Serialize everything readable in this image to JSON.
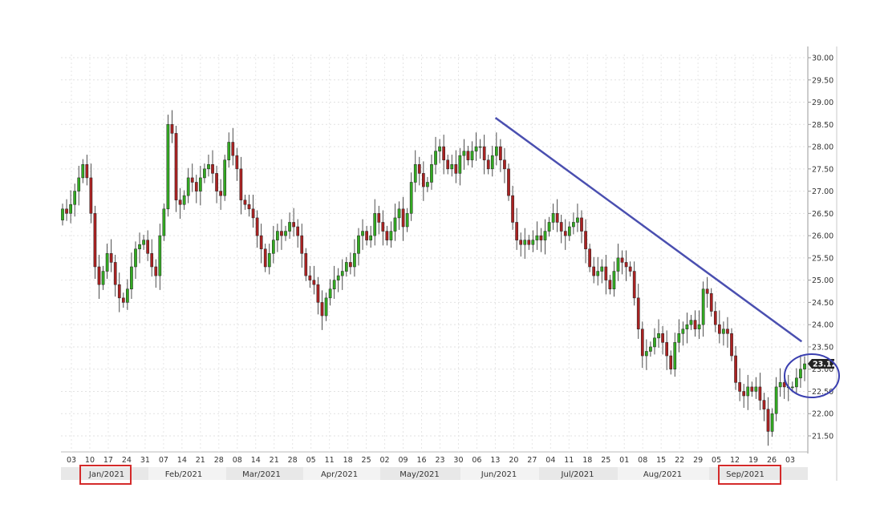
{
  "chart_data": {
    "type": "candlestick",
    "ylim": [
      21.25,
      30.25
    ],
    "y_ticks": [
      "21.50",
      "22.00",
      "22.50",
      "23.00",
      "23.50",
      "24.00",
      "24.50",
      "25.00",
      "25.50",
      "26.00",
      "26.50",
      "27.00",
      "27.50",
      "28.00",
      "28.50",
      "29.00",
      "29.50",
      "30.00"
    ],
    "x_day_labels": [
      "03",
      "10",
      "17",
      "24",
      "31",
      "07",
      "14",
      "21",
      "28",
      "08",
      "14",
      "21",
      "28",
      "05",
      "11",
      "18",
      "25",
      "02",
      "09",
      "16",
      "23",
      "30",
      "06",
      "13",
      "20",
      "27",
      "04",
      "11",
      "18",
      "25",
      "01",
      "08",
      "15",
      "22",
      "29",
      "05",
      "12",
      "19",
      "26",
      "03"
    ],
    "x_month_labels": [
      "Jan/2021",
      "Feb/2021",
      "Mar/2021",
      "Apr/2021",
      "May/2021",
      "Jun/2021",
      "Jul/2021",
      "Aug/2021",
      "Sep/2021"
    ],
    "highlighted_months": [
      "Jan/2021",
      "Sep/2021"
    ],
    "last_price": "23.12",
    "colors": {
      "up": "#33aa22",
      "down": "#aa2222",
      "trendline": "#4a4fb0",
      "highlight_box": "#d42a2a",
      "ellipse": "#3a3fb0",
      "price_tag": "#222222"
    },
    "trendline": {
      "start": {
        "date": "2021-05-28",
        "value": 28.65
      },
      "end": {
        "date": "2021-09-09",
        "value": 23.62
      }
    },
    "close": [
      26.6,
      26.5,
      26.7,
      27.0,
      27.3,
      27.6,
      27.3,
      26.5,
      25.3,
      24.9,
      25.2,
      25.6,
      25.4,
      24.9,
      24.6,
      24.5,
      24.8,
      25.3,
      25.7,
      25.8,
      25.9,
      25.6,
      25.3,
      25.1,
      26.0,
      26.6,
      28.5,
      28.3,
      26.8,
      26.7,
      26.9,
      27.3,
      27.2,
      27.0,
      27.3,
      27.5,
      27.6,
      27.4,
      27.0,
      26.9,
      27.7,
      28.1,
      27.8,
      27.5,
      26.8,
      26.7,
      26.6,
      26.4,
      26.0,
      25.7,
      25.3,
      25.6,
      25.9,
      26.1,
      26.0,
      26.1,
      26.3,
      26.2,
      26.0,
      25.6,
      25.1,
      25.0,
      24.9,
      24.5,
      24.2,
      24.6,
      24.8,
      25.0,
      25.1,
      25.2,
      25.4,
      25.3,
      25.6,
      26.0,
      26.1,
      25.9,
      26.0,
      26.5,
      26.3,
      26.1,
      25.9,
      26.1,
      26.4,
      26.6,
      26.2,
      26.5,
      27.2,
      27.6,
      27.4,
      27.1,
      27.2,
      27.6,
      27.9,
      28.0,
      27.7,
      27.5,
      27.6,
      27.4,
      27.8,
      27.9,
      27.7,
      27.9,
      28.0,
      28.0,
      27.7,
      27.5,
      27.8,
      28.0,
      27.7,
      27.5,
      26.9,
      26.3,
      25.9,
      25.8,
      25.9,
      25.8,
      25.9,
      26.0,
      25.9,
      26.1,
      26.3,
      26.5,
      26.3,
      26.1,
      26.0,
      26.2,
      26.3,
      26.4,
      26.1,
      25.7,
      25.3,
      25.1,
      25.2,
      25.3,
      25.0,
      24.8,
      25.2,
      25.5,
      25.4,
      25.3,
      25.2,
      24.6,
      23.9,
      23.3,
      23.4,
      23.5,
      23.7,
      23.8,
      23.6,
      23.3,
      23.0,
      23.6,
      23.8,
      23.9,
      24.0,
      24.1,
      23.9,
      24.0,
      24.8,
      24.7,
      24.3,
      24.0,
      23.8,
      23.9,
      23.8,
      23.3,
      22.7,
      22.5,
      22.4,
      22.6,
      22.5,
      22.6,
      22.3,
      22.1,
      21.6,
      22.0,
      22.6,
      22.7,
      22.6,
      22.6,
      22.6,
      22.8,
      23.0,
      23.12
    ]
  }
}
